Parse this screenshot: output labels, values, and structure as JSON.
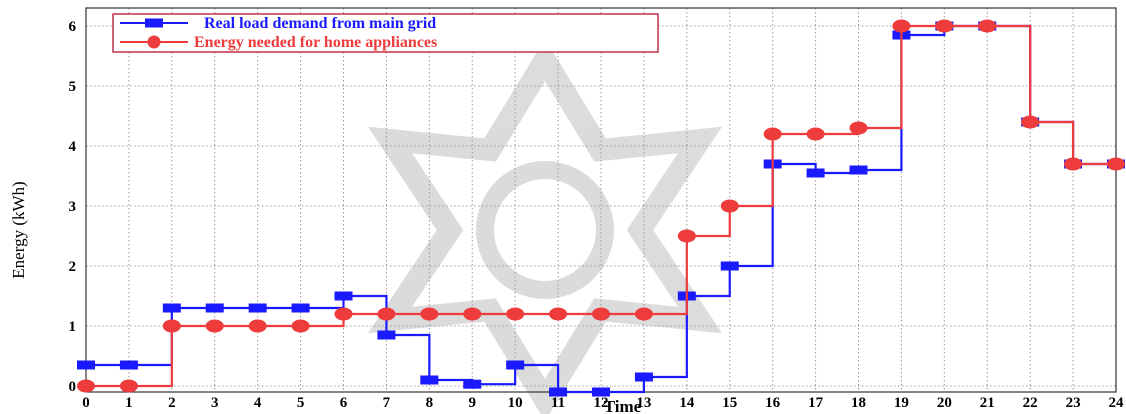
{
  "chart_data": {
    "type": "line",
    "xlabel": "Time",
    "ylabel": "Energy (kWh)",
    "xlim": [
      0,
      24
    ],
    "ylim": [
      -0.1,
      6.3
    ],
    "x_ticks": [
      0,
      1,
      2,
      3,
      4,
      5,
      6,
      7,
      8,
      9,
      10,
      11,
      12,
      13,
      14,
      15,
      16,
      17,
      18,
      19,
      20,
      21,
      22,
      23,
      24
    ],
    "y_ticks": [
      0,
      1,
      2,
      3,
      4,
      5,
      6
    ],
    "grid": true,
    "legend_position": "top-left",
    "series": [
      {
        "name": "Real load demand from main grid",
        "color": "#1a1aff",
        "marker": "square",
        "step": "post",
        "x": [
          0,
          1,
          2,
          3,
          4,
          5,
          6,
          7,
          8,
          9,
          10,
          11,
          12,
          13,
          14,
          15,
          16,
          17,
          18,
          19,
          20,
          21,
          22,
          23,
          24
        ],
        "values": [
          0.35,
          0.35,
          1.3,
          1.3,
          1.3,
          1.3,
          1.5,
          0.85,
          0.1,
          0.03,
          0.35,
          -0.1,
          -0.1,
          0.15,
          1.5,
          2.0,
          3.7,
          3.55,
          3.6,
          5.85,
          6.0,
          6.0,
          4.4,
          3.7,
          3.7
        ]
      },
      {
        "name": "Energy needed for home appliances",
        "color": "#ee3b3b",
        "marker": "circle",
        "step": "post",
        "x": [
          0,
          1,
          2,
          3,
          4,
          5,
          6,
          7,
          8,
          9,
          10,
          11,
          12,
          13,
          14,
          15,
          16,
          17,
          18,
          19,
          20,
          21,
          22,
          23,
          24
        ],
        "values": [
          0,
          0,
          1.0,
          1.0,
          1.0,
          1.0,
          1.2,
          1.2,
          1.2,
          1.2,
          1.2,
          1.2,
          1.2,
          1.2,
          2.5,
          3.0,
          4.2,
          4.2,
          4.3,
          6.0,
          6.0,
          6.0,
          4.4,
          3.7,
          3.7
        ]
      }
    ]
  }
}
